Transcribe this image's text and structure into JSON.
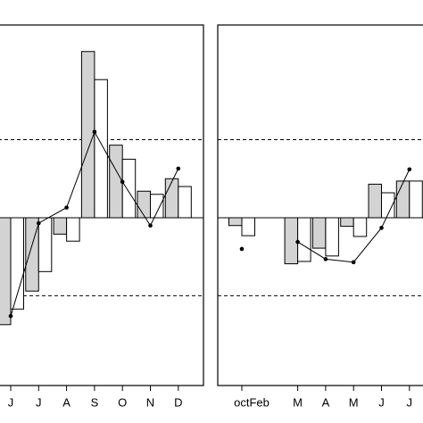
{
  "chart_data": [
    {
      "type": "bar",
      "categories": [
        "J",
        "J",
        "A",
        "S",
        "O",
        "N",
        "D"
      ],
      "series": [
        {
          "color": "#d3d3d3",
          "values": [
            -1.37,
            -0.94,
            -0.21,
            2.13,
            0.93,
            0.34,
            0.5
          ]
        },
        {
          "color": "#ffffff",
          "values": [
            -1.17,
            -0.69,
            -0.3,
            1.77,
            0.75,
            0.3,
            0.4
          ]
        },
        {
          "type": "line",
          "color": "#000000",
          "values": [
            -1.26,
            -0.07,
            0.13,
            1.1,
            0.46,
            -0.1,
            0.63
          ]
        }
      ],
      "ylim": [
        -2.15,
        2.47
      ],
      "hlines": [
        -1,
        1
      ]
    },
    {
      "type": "bar",
      "categories": [
        "octFeb",
        null,
        "M",
        "A",
        "M",
        "J",
        "J"
      ],
      "series": [
        {
          "color": "#d3d3d3",
          "values": [
            -0.1,
            null,
            -0.59,
            -0.39,
            -0.11,
            0.43,
            0.47
          ]
        },
        {
          "color": "#ffffff",
          "values": [
            -0.23,
            null,
            -0.56,
            -0.49,
            -0.24,
            0.32,
            0.47
          ]
        },
        {
          "type": "line",
          "color": "#000000",
          "values": [
            -0.4,
            null,
            -0.31,
            -0.53,
            -0.57,
            -0.13,
            0.62
          ]
        }
      ],
      "ylim": [
        -2.15,
        2.47
      ],
      "hlines": [
        -1,
        1
      ]
    }
  ]
}
